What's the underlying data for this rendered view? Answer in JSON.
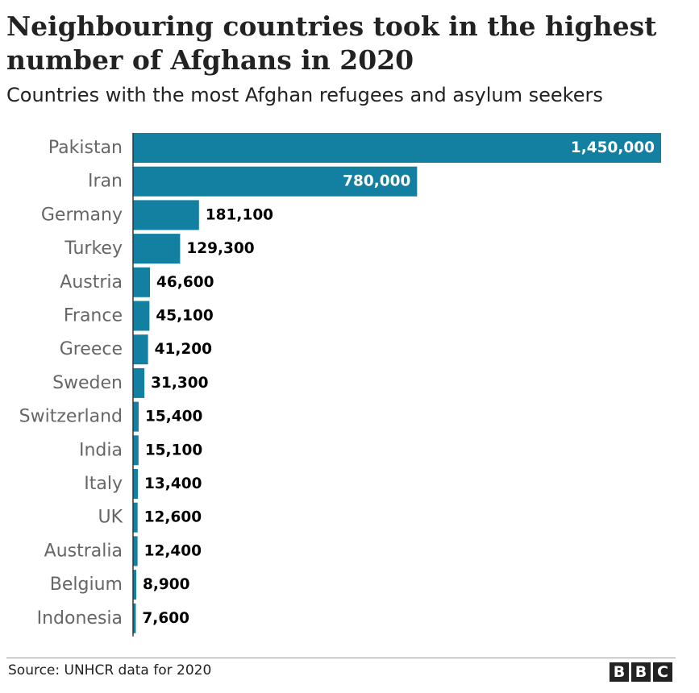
{
  "title": "Neighbouring countries took in the highest number of Afghans in 2020",
  "subtitle": "Countries with the most Afghan refugees and asylum seekers",
  "source": "Source: UNHCR data for 2020",
  "logo_letters": [
    "B",
    "B",
    "C"
  ],
  "colors": {
    "bar": "#1380A1",
    "inside_label": "#ffffff",
    "outside_label": "#000000",
    "category_label": "#666666"
  },
  "chart_data": {
    "type": "bar",
    "orientation": "horizontal",
    "categories": [
      "Pakistan",
      "Iran",
      "Germany",
      "Turkey",
      "Austria",
      "France",
      "Greece",
      "Sweden",
      "Switzerland",
      "India",
      "Italy",
      "UK",
      "Australia",
      "Belgium",
      "Indonesia"
    ],
    "values": [
      1450000,
      780000,
      181100,
      129300,
      46600,
      45100,
      41200,
      31300,
      15400,
      15100,
      13400,
      12600,
      12400,
      8900,
      7600
    ],
    "value_labels": [
      "1,450,000",
      "780,000",
      "181,100",
      "129,300",
      "46,600",
      "45,100",
      "41,200",
      "31,300",
      "15,400",
      "15,100",
      "13,400",
      "12,600",
      "12,400",
      "8,900",
      "7,600"
    ],
    "xlim": [
      0,
      1450000
    ],
    "grid": false,
    "legend": "none"
  }
}
